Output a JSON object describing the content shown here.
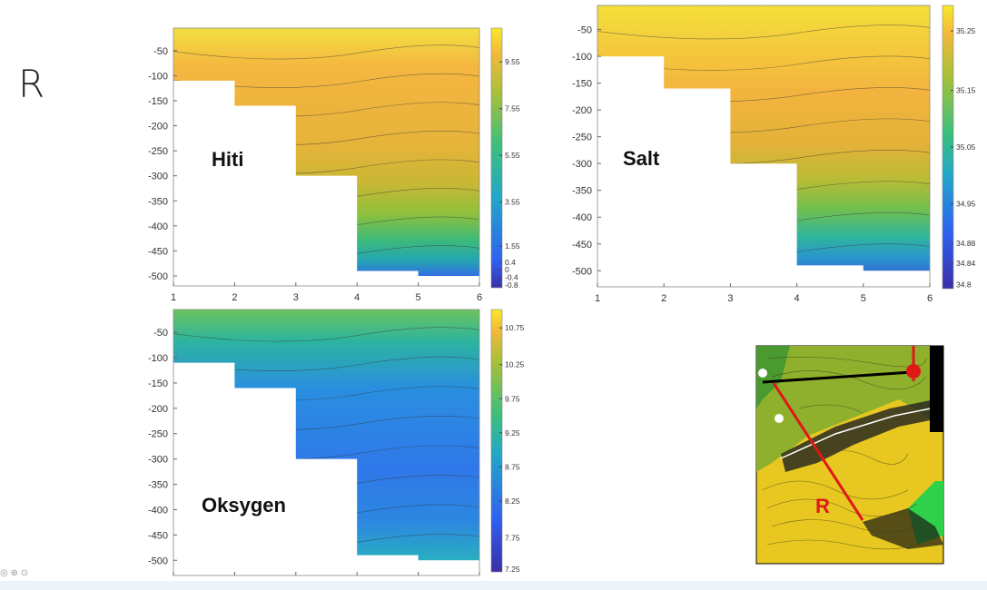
{
  "slide": {
    "letter": "R",
    "corner_icons": [
      "view-icon",
      "search-icon",
      "more-icon"
    ]
  },
  "chart_data": [
    {
      "type": "contour",
      "title": "Hiti",
      "x": [
        1,
        2,
        3,
        4,
        5,
        6
      ],
      "yticks": [
        -50,
        -100,
        -150,
        -200,
        -250,
        -300,
        -350,
        -400,
        -450,
        -500
      ],
      "ylim": [
        -520,
        -5
      ],
      "xlim": [
        1,
        6
      ],
      "mask_profile": [
        [
          1,
          -110
        ],
        [
          2,
          -160
        ],
        [
          3,
          -300
        ],
        [
          4,
          -490
        ],
        [
          5,
          -500
        ],
        [
          6,
          -500
        ]
      ],
      "colorbar_ticks": [
        "9.55",
        "7.55",
        "5.55",
        "3.55",
        "1.55",
        "0.4",
        "0",
        "-0.4",
        "-0.8"
      ],
      "colorbar_range": [
        -0.8,
        11
      ]
    },
    {
      "type": "contour",
      "title": "Salt",
      "x": [
        1,
        2,
        3,
        4,
        5,
        6
      ],
      "yticks": [
        -50,
        -100,
        -150,
        -200,
        -250,
        -300,
        -350,
        -400,
        -450,
        -500
      ],
      "ylim": [
        -530,
        -5
      ],
      "xlim": [
        1,
        6
      ],
      "mask_profile": [
        [
          1,
          -100
        ],
        [
          2,
          -160
        ],
        [
          3,
          -300
        ],
        [
          4,
          -490
        ],
        [
          5,
          -500
        ],
        [
          6,
          -490
        ]
      ],
      "colorbar_ticks": [
        "35.25",
        "35.15",
        "35.05",
        "34.95",
        "34.88",
        "34.84",
        "34.8"
      ],
      "colorbar_range": [
        34.8,
        35.3
      ]
    },
    {
      "type": "contour",
      "title": "Oksygen",
      "x": [
        1,
        2,
        3,
        4,
        5,
        6
      ],
      "yticks": [
        -50,
        -100,
        -150,
        -200,
        -250,
        -300,
        -350,
        -400,
        -450,
        -500
      ],
      "ylim": [
        -530,
        -5
      ],
      "xlim": [
        1,
        6
      ],
      "mask_profile": [
        [
          1,
          -110
        ],
        [
          2,
          -160
        ],
        [
          3,
          -300
        ],
        [
          4,
          -490
        ],
        [
          5,
          -500
        ],
        [
          6,
          -490
        ]
      ],
      "colorbar_ticks": [
        "10.75",
        "10.25",
        "9.75",
        "9.25",
        "8.75",
        "8.25",
        "7.75",
        "7.25"
      ],
      "colorbar_range": [
        7.25,
        11
      ]
    }
  ],
  "map": {
    "label": "R"
  }
}
